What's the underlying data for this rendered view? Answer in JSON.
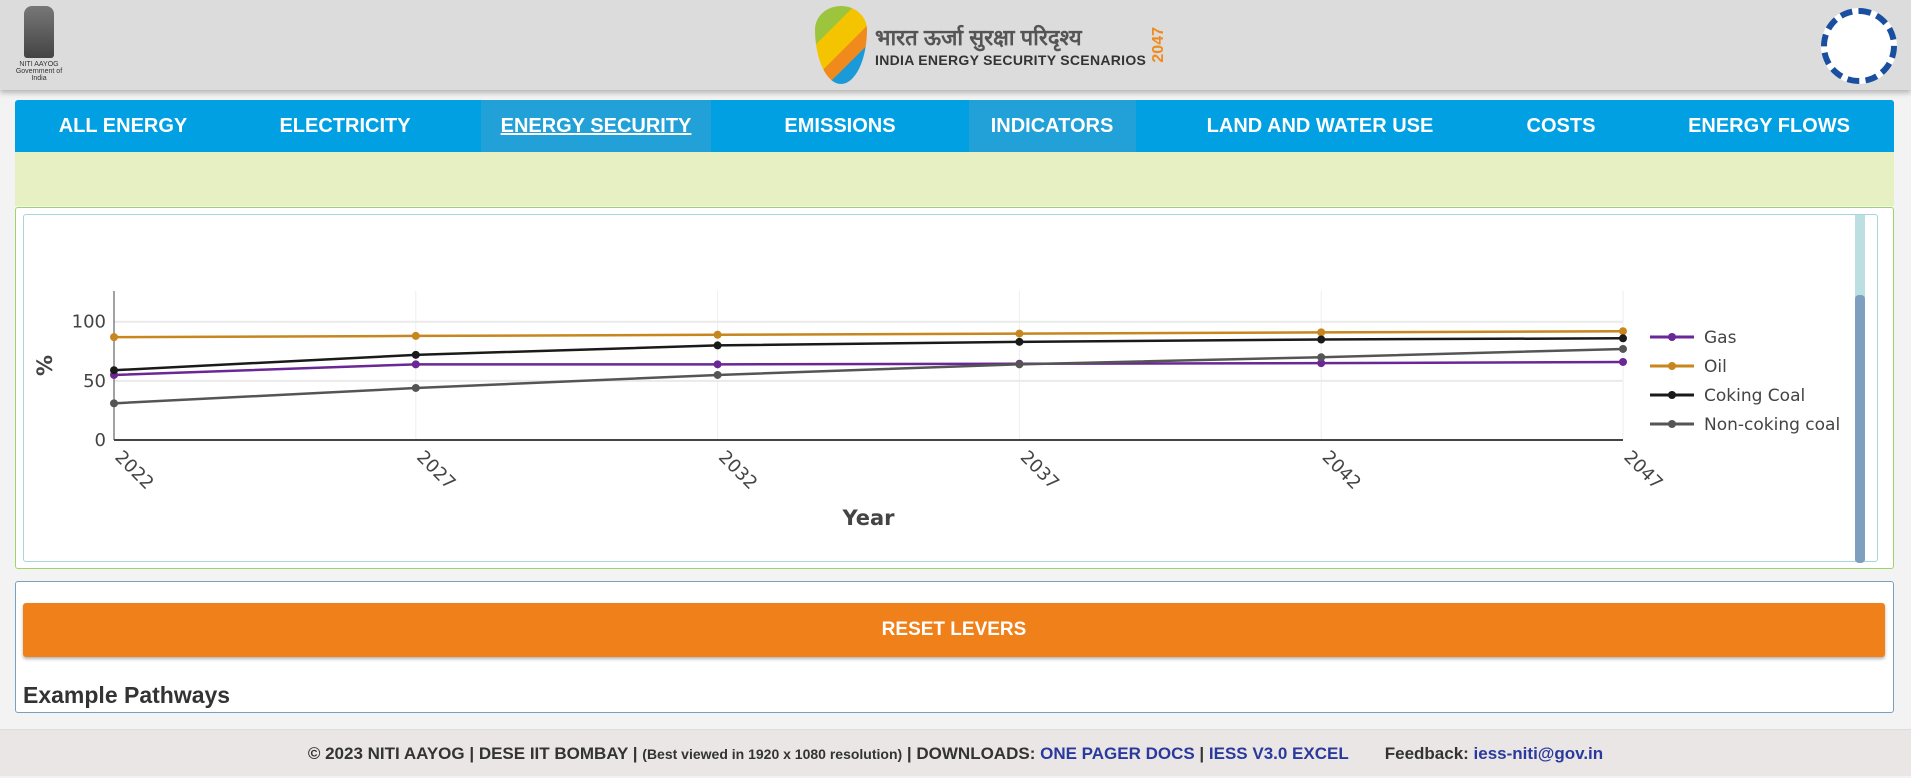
{
  "header": {
    "left_logo": {
      "line1": "NITI AAYOG",
      "line2": "Government of India"
    },
    "center_logo": {
      "hindi": "भारत ऊर्जा सुरक्षा परिदृश्य",
      "english": "INDIA ENERGY SECURITY SCENARIOS",
      "year": "2047"
    },
    "right_logo": "IIT Bombay"
  },
  "nav": {
    "items": [
      {
        "label": "ALL ENERGY"
      },
      {
        "label": "ELECTRICITY"
      },
      {
        "label": "ENERGY SECURITY",
        "active": true
      },
      {
        "label": "EMISSIONS"
      },
      {
        "label": "INDICATORS",
        "highlighted": true
      },
      {
        "label": "LAND AND WATER USE"
      },
      {
        "label": "COSTS"
      },
      {
        "label": "ENERGY FLOWS"
      }
    ],
    "color": "#00a0e3"
  },
  "chart_data": {
    "type": "line",
    "xlabel": "Year",
    "ylabel": "%",
    "x": [
      2022,
      2027,
      2032,
      2037,
      2042,
      2047
    ],
    "xticks": [
      "2022",
      "2027",
      "2032",
      "2037",
      "2042",
      "2047"
    ],
    "yticks": [
      "0",
      "50",
      "100"
    ],
    "ylim": [
      0,
      126
    ],
    "grid": true,
    "legend_position": "right",
    "series": [
      {
        "name": "Gas",
        "color": "#6a2796",
        "values": [
          55,
          64,
          64,
          64.5,
          65,
          66
        ]
      },
      {
        "name": "Oil",
        "color": "#c7861e",
        "values": [
          87,
          88,
          89,
          90,
          91,
          92
        ]
      },
      {
        "name": "Coking Coal",
        "color": "#1a1a1a",
        "values": [
          59,
          72,
          80,
          83,
          85,
          86
        ]
      },
      {
        "name": "Non-coking coal",
        "color": "#555555",
        "values": [
          31,
          44,
          55,
          64,
          70,
          77
        ]
      }
    ]
  },
  "controls": {
    "reset_label": "RESET LEVERS",
    "pathways_title": "Example Pathways",
    "accent": "#f0801a"
  },
  "footer": {
    "copyright": "© 2023 NITI AAYOG | DESE IIT BOMBAY | ",
    "best_viewed": "(Best viewed in 1920 x 1080 resolution)",
    "downloads": " | DOWNLOADS: ",
    "one_pager": "ONE PAGER DOCS",
    "sep": " | ",
    "excel": "IESS V3.0 EXCEL",
    "feedback_label": "Feedback: ",
    "email": "iess-niti@gov.in"
  }
}
